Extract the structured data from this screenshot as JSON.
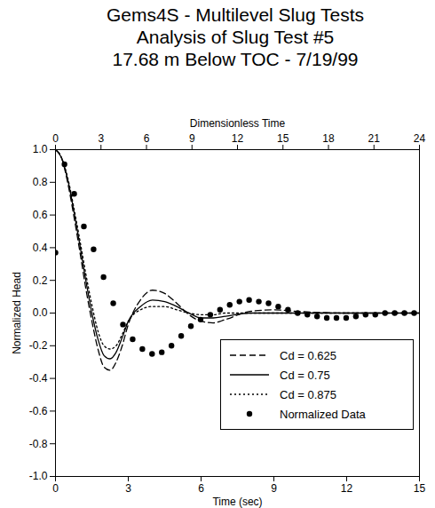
{
  "chart_data": {
    "type": "line",
    "title": [
      "Gems4S - Multilevel Slug Tests",
      "Analysis of Slug Test #5",
      "17.68 m Below TOC - 7/19/99"
    ],
    "x_label": "Time (sec)",
    "x2_label": "Dimensionless Time",
    "y_label": "Normalized Head",
    "xlim": [
      0,
      15
    ],
    "xticks": [
      0,
      3,
      6,
      9,
      12,
      15
    ],
    "x2lim": [
      0,
      24
    ],
    "x2ticks": [
      0,
      3,
      6,
      9,
      12,
      15,
      18,
      21,
      24
    ],
    "ylim": [
      -1.0,
      1.0
    ],
    "yticks": [
      {
        "value": -1.0,
        "label": "-1.0"
      },
      {
        "value": -0.8,
        "label": "-0.8"
      },
      {
        "value": -0.6,
        "label": "-0.6"
      },
      {
        "value": -0.4,
        "label": "-0.4"
      },
      {
        "value": -0.2,
        "label": "-0.2"
      },
      {
        "value": 0.0,
        "label": "0.0"
      },
      {
        "value": 0.2,
        "label": "0.2"
      },
      {
        "value": 0.4,
        "label": "0.4"
      },
      {
        "value": 0.6,
        "label": "0.6"
      },
      {
        "value": 0.8,
        "label": "0.8"
      },
      {
        "value": 1.0,
        "label": "1.0"
      }
    ],
    "grid": false,
    "legend": "lower right",
    "series": [
      {
        "name": "Cd = 0.625",
        "type": "line",
        "line_style": "dashed",
        "color": "#000000",
        "x": [
          0,
          0.25,
          0.5,
          0.75,
          1,
          1.25,
          1.5,
          1.75,
          2,
          2.25,
          2.5,
          2.75,
          3,
          3.5,
          4,
          4.5,
          5,
          5.5,
          6,
          6.5,
          7,
          8,
          9,
          10,
          12,
          15
        ],
        "values": [
          1,
          0.95,
          0.8,
          0.6,
          0.38,
          0.15,
          -0.05,
          -0.22,
          -0.33,
          -0.35,
          -0.3,
          -0.2,
          -0.07,
          0.08,
          0.14,
          0.12,
          0.06,
          -0.01,
          -0.05,
          -0.06,
          -0.04,
          0.01,
          0.02,
          0.01,
          0,
          0
        ]
      },
      {
        "name": "Cd = 0.75",
        "type": "line",
        "line_style": "solid",
        "color": "#000000",
        "x": [
          0,
          0.25,
          0.5,
          0.75,
          1,
          1.25,
          1.5,
          1.75,
          2,
          2.25,
          2.5,
          2.75,
          3,
          3.5,
          4,
          4.5,
          5,
          5.5,
          6,
          6.5,
          7,
          8,
          9,
          10,
          12,
          15
        ],
        "values": [
          1,
          0.95,
          0.82,
          0.63,
          0.42,
          0.2,
          0.0,
          -0.16,
          -0.26,
          -0.28,
          -0.24,
          -0.15,
          -0.05,
          0.04,
          0.08,
          0.07,
          0.04,
          0.0,
          -0.03,
          -0.03,
          -0.02,
          0.0,
          0.0,
          0,
          0,
          0
        ]
      },
      {
        "name": "Cd = 0.875",
        "type": "line",
        "line_style": "dotted",
        "color": "#000000",
        "x": [
          0,
          0.25,
          0.5,
          0.75,
          1,
          1.25,
          1.5,
          1.75,
          2,
          2.25,
          2.5,
          2.75,
          3,
          3.5,
          4,
          4.5,
          5,
          5.5,
          6,
          6.5,
          7,
          8,
          9,
          10,
          12,
          15
        ],
        "values": [
          1,
          0.95,
          0.83,
          0.65,
          0.45,
          0.24,
          0.05,
          -0.11,
          -0.2,
          -0.22,
          -0.2,
          -0.13,
          -0.05,
          0.02,
          0.04,
          0.04,
          0.02,
          0,
          -0.01,
          -0.01,
          0,
          0,
          0,
          0,
          0,
          0
        ]
      },
      {
        "name": "Normalized Data",
        "type": "scatter",
        "marker": "circle",
        "color": "#000000",
        "x": [
          0,
          0.37,
          0.77,
          1.17,
          1.57,
          1.98,
          2.38,
          2.78,
          3.18,
          3.58,
          3.98,
          4.38,
          4.78,
          5.18,
          5.58,
          5.98,
          6.38,
          6.78,
          7.18,
          7.58,
          7.98,
          8.38,
          8.78,
          9.18,
          9.58,
          9.98,
          10.38,
          10.78,
          11.18,
          11.58,
          11.98,
          12.38,
          12.78,
          13.18,
          13.58,
          13.98,
          14.38,
          14.78
        ],
        "values": [
          0.37,
          0.91,
          0.73,
          0.53,
          0.39,
          0.22,
          0.06,
          -0.07,
          -0.16,
          -0.22,
          -0.25,
          -0.24,
          -0.2,
          -0.14,
          -0.08,
          -0.04,
          -0.01,
          0.02,
          0.05,
          0.07,
          0.08,
          0.07,
          0.06,
          0.04,
          0.02,
          0.0,
          -0.01,
          -0.02,
          -0.03,
          -0.03,
          -0.03,
          -0.02,
          -0.01,
          -0.01,
          0.0,
          0.0,
          0.0,
          0.0
        ]
      }
    ]
  }
}
